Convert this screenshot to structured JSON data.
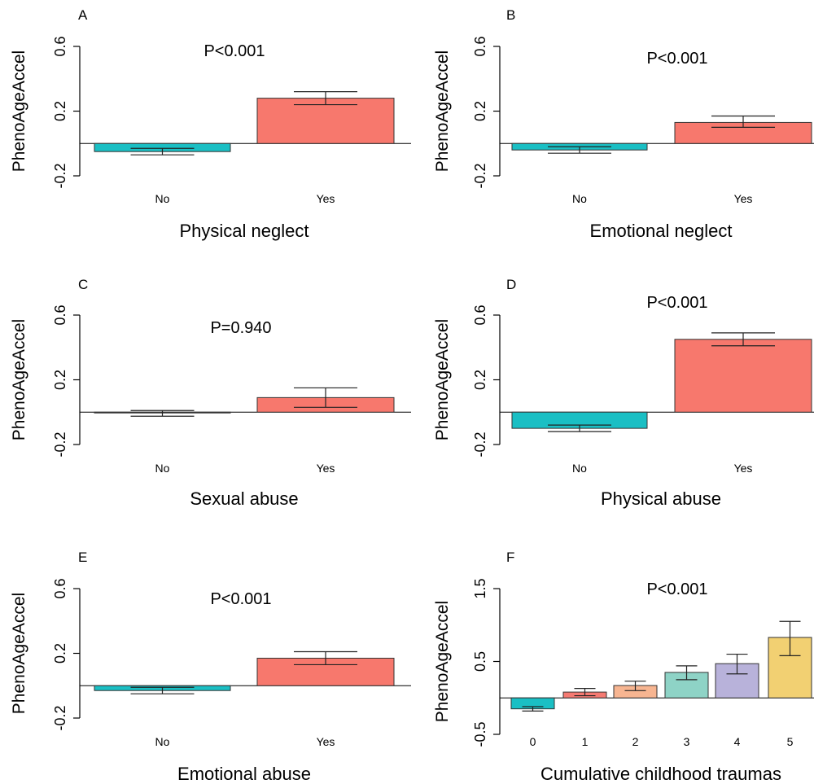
{
  "colors": {
    "no": "#1ABFC4",
    "yes": "#F7786D",
    "c0": "#1ABFC4",
    "c1": "#F57A72",
    "c2": "#F7B591",
    "c3": "#8ED3C6",
    "c4": "#B8B2DA",
    "c5": "#F2D072",
    "axis": "#000000"
  },
  "chart_data": [
    {
      "panel": "A",
      "type": "bar",
      "categories": [
        "No",
        "Yes"
      ],
      "values": [
        -0.05,
        0.28
      ],
      "error": [
        [
          -0.07,
          -0.03
        ],
        [
          0.24,
          0.32
        ]
      ],
      "pvalue": "P<0.001",
      "xlabel": "Physical neglect",
      "ylabel": "PhenoAgeAccel",
      "yticks": [
        "-0.2",
        "0.2",
        "0.6"
      ],
      "ylim": [
        -0.2,
        0.6
      ]
    },
    {
      "panel": "B",
      "type": "bar",
      "categories": [
        "No",
        "Yes"
      ],
      "values": [
        -0.04,
        0.13
      ],
      "error": [
        [
          -0.06,
          -0.02
        ],
        [
          0.1,
          0.17
        ]
      ],
      "pvalue": "P<0.001",
      "xlabel": "Emotional neglect",
      "ylabel": "PhenoAgeAccel",
      "yticks": [
        "-0.2",
        "0.2",
        "0.6"
      ],
      "ylim": [
        -0.2,
        0.6
      ]
    },
    {
      "panel": "C",
      "type": "bar",
      "categories": [
        "No",
        "Yes"
      ],
      "values": [
        -0.005,
        0.09
      ],
      "error": [
        [
          -0.025,
          0.01
        ],
        [
          0.03,
          0.15
        ]
      ],
      "pvalue": "P=0.940",
      "xlabel": "Sexual abuse",
      "ylabel": "PhenoAgeAccel",
      "yticks": [
        "-0.2",
        "0.2",
        "0.6"
      ],
      "ylim": [
        -0.2,
        0.6
      ]
    },
    {
      "panel": "D",
      "type": "bar",
      "categories": [
        "No",
        "Yes"
      ],
      "values": [
        -0.1,
        0.45
      ],
      "error": [
        [
          -0.12,
          -0.08
        ],
        [
          0.41,
          0.49
        ]
      ],
      "pvalue": "P<0.001",
      "xlabel": "Physical abuse",
      "ylabel": "PhenoAgeAccel",
      "yticks": [
        "-0.2",
        "0.2",
        "0.6"
      ],
      "ylim": [
        -0.2,
        0.6
      ]
    },
    {
      "panel": "E",
      "type": "bar",
      "categories": [
        "No",
        "Yes"
      ],
      "values": [
        -0.03,
        0.17
      ],
      "error": [
        [
          -0.05,
          -0.01
        ],
        [
          0.13,
          0.21
        ]
      ],
      "pvalue": "P<0.001",
      "xlabel": "Emotional abuse",
      "ylabel": "PhenoAgeAccel",
      "yticks": [
        "-0.2",
        "0.2",
        "0.6"
      ],
      "ylim": [
        -0.2,
        0.6
      ]
    },
    {
      "panel": "F",
      "type": "bar",
      "categories": [
        "0",
        "1",
        "2",
        "3",
        "4",
        "5"
      ],
      "values": [
        -0.15,
        0.08,
        0.17,
        0.35,
        0.47,
        0.83
      ],
      "error": [
        [
          -0.18,
          -0.12
        ],
        [
          0.03,
          0.13
        ],
        [
          0.1,
          0.23
        ],
        [
          0.25,
          0.44
        ],
        [
          0.33,
          0.6
        ],
        [
          0.58,
          1.05
        ]
      ],
      "pvalue": "P<0.001",
      "xlabel": "Cumulative childhood traumas",
      "ylabel": "PhenoAgeAccel",
      "yticks": [
        "-0.5",
        "0.5",
        "1.5"
      ],
      "ylim": [
        -0.5,
        1.5
      ]
    }
  ]
}
